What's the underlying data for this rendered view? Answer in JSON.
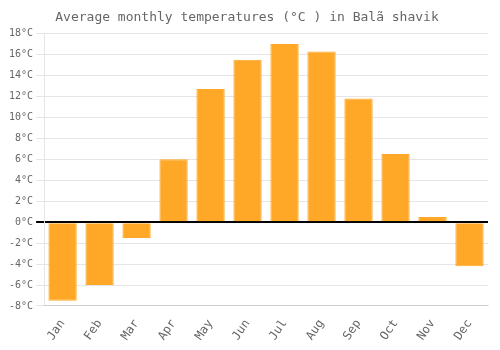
{
  "chart_data": {
    "type": "bar",
    "title": "Average monthly temperatures (°C ) in Balã shavik",
    "categories": [
      "Jan",
      "Feb",
      "Mar",
      "Apr",
      "May",
      "Jun",
      "Jul",
      "Aug",
      "Sep",
      "Oct",
      "Nov",
      "Dec"
    ],
    "values": [
      -7.5,
      -6.0,
      -1.5,
      6.0,
      12.7,
      15.5,
      17.0,
      16.3,
      11.8,
      6.5,
      0.5,
      -4.2
    ],
    "color": "#FFA726",
    "ylim": [
      -8,
      18
    ],
    "yticks": [
      {
        "value": -8,
        "label": "-8°C"
      },
      {
        "value": -6,
        "label": "-6°C"
      },
      {
        "value": -4,
        "label": "-4°C"
      },
      {
        "value": -2,
        "label": "-2°C"
      },
      {
        "value": 0,
        "label": "0°C"
      },
      {
        "value": 2,
        "label": "2°C"
      },
      {
        "value": 4,
        "label": "4°C"
      },
      {
        "value": 6,
        "label": "6°C"
      },
      {
        "value": 8,
        "label": "8°C"
      },
      {
        "value": 10,
        "label": "10°C"
      },
      {
        "value": 12,
        "label": "12°C"
      },
      {
        "value": 14,
        "label": "14°C"
      },
      {
        "value": 16,
        "label": "16°C"
      },
      {
        "value": 18,
        "label": "18°C"
      }
    ],
    "grid": true
  }
}
